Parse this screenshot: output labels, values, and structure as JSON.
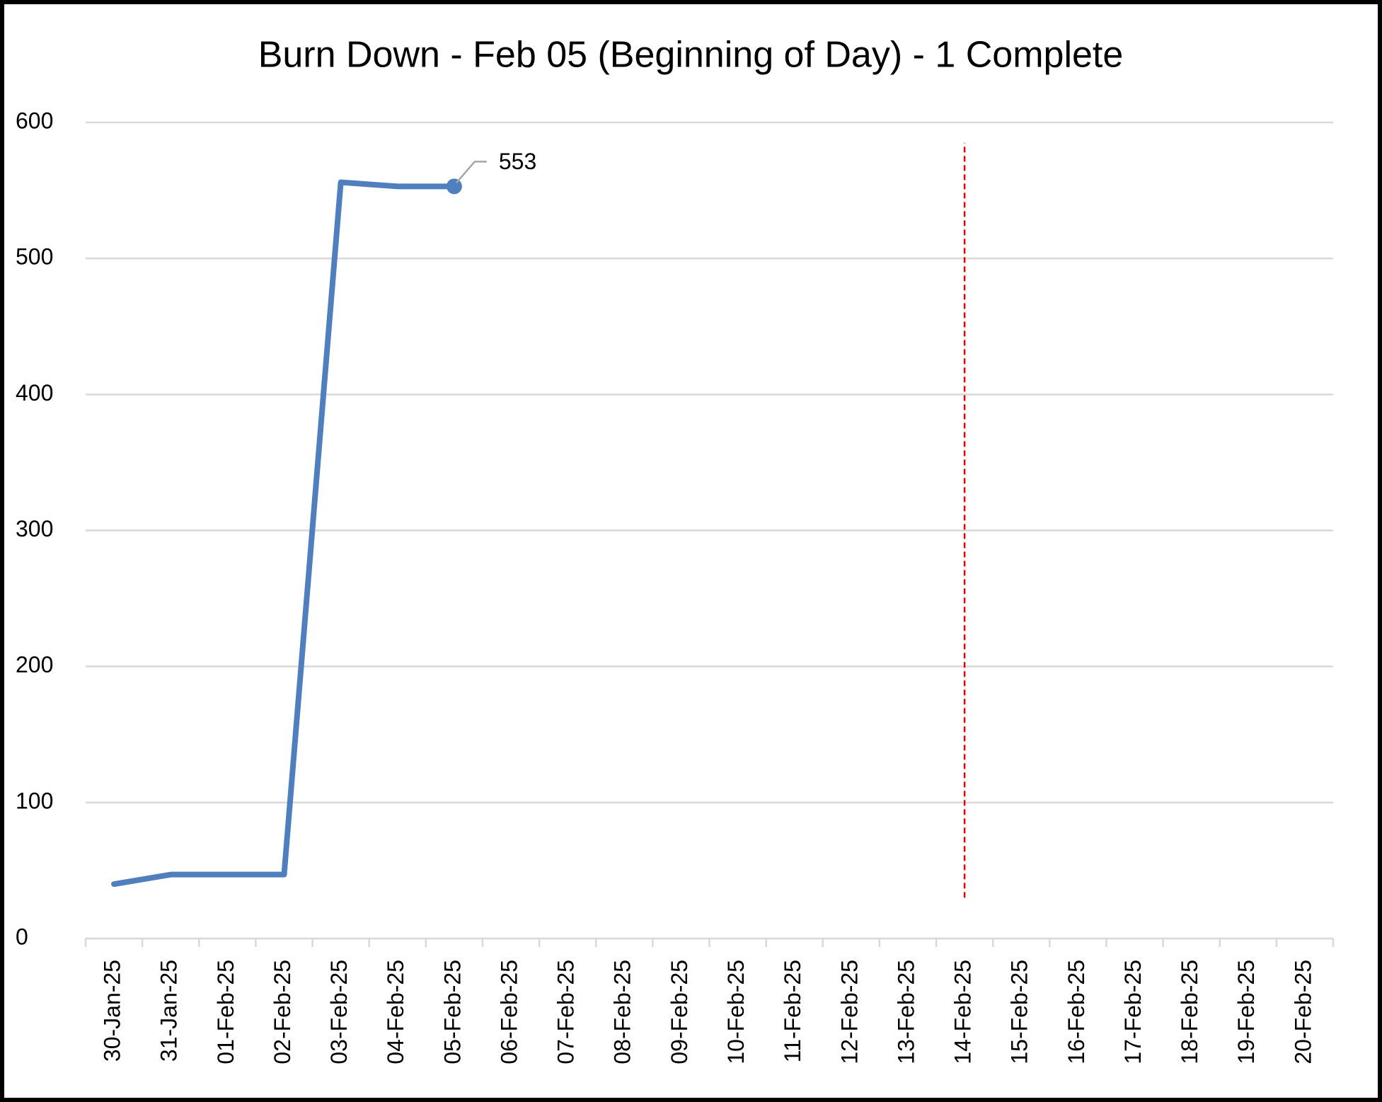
{
  "chart_data": {
    "type": "line",
    "title": "Burn Down - Feb 05 (Beginning of Day) - 1 Complete",
    "categories": [
      "30-Jan-25",
      "31-Jan-25",
      "01-Feb-25",
      "02-Feb-25",
      "03-Feb-25",
      "04-Feb-25",
      "05-Feb-25",
      "06-Feb-25",
      "07-Feb-25",
      "08-Feb-25",
      "09-Feb-25",
      "10-Feb-25",
      "11-Feb-25",
      "12-Feb-25",
      "13-Feb-25",
      "14-Feb-25",
      "15-Feb-25",
      "16-Feb-25",
      "17-Feb-25",
      "18-Feb-25",
      "19-Feb-25",
      "20-Feb-25"
    ],
    "values": [
      40,
      47,
      47,
      47,
      556,
      553,
      553,
      null,
      null,
      null,
      null,
      null,
      null,
      null,
      null,
      null,
      null,
      null,
      null,
      null,
      null,
      null
    ],
    "value_labels": [
      null,
      null,
      null,
      null,
      null,
      null,
      "553",
      null,
      null,
      null,
      null,
      null,
      null,
      null,
      null,
      null,
      null,
      null,
      null,
      null,
      null,
      null
    ],
    "color": "#4f7fbd",
    "ylim": [
      0,
      600
    ],
    "yticks": [
      0,
      100,
      200,
      300,
      400,
      500,
      600
    ],
    "grid": true,
    "vline": {
      "x": "14-Feb-25",
      "from": 30,
      "to": 585,
      "color": "#e00000"
    }
  }
}
